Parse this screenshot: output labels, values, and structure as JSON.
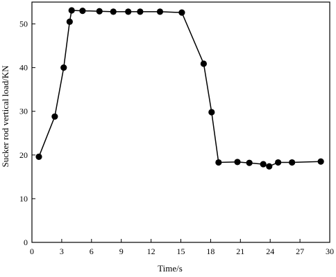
{
  "chart_data": {
    "type": "line",
    "xlabel": "Time/s",
    "ylabel": "Sucker rod vertical load/KN",
    "xlim": [
      0,
      30
    ],
    "ylim": [
      0,
      55
    ],
    "xticks": [
      0,
      3,
      6,
      9,
      12,
      15,
      18,
      21,
      24,
      27,
      30
    ],
    "yticks": [
      0,
      10,
      20,
      30,
      40,
      50
    ],
    "grid": false,
    "series": [
      {
        "marker": "circle",
        "color": "#000000",
        "x": [
          0.7,
          2.3,
          3.2,
          3.8,
          4.0,
          5.1,
          6.8,
          8.2,
          9.7,
          10.9,
          12.9,
          15.1,
          17.3,
          18.1,
          18.8,
          20.7,
          21.9,
          23.3,
          23.9,
          24.8,
          26.2,
          29.1
        ],
        "y": [
          19.6,
          28.8,
          40.0,
          50.5,
          53.1,
          53.0,
          52.9,
          52.8,
          52.8,
          52.8,
          52.8,
          52.6,
          40.9,
          29.8,
          18.3,
          18.4,
          18.2,
          17.9,
          17.4,
          18.3,
          18.3,
          18.5
        ]
      }
    ]
  }
}
